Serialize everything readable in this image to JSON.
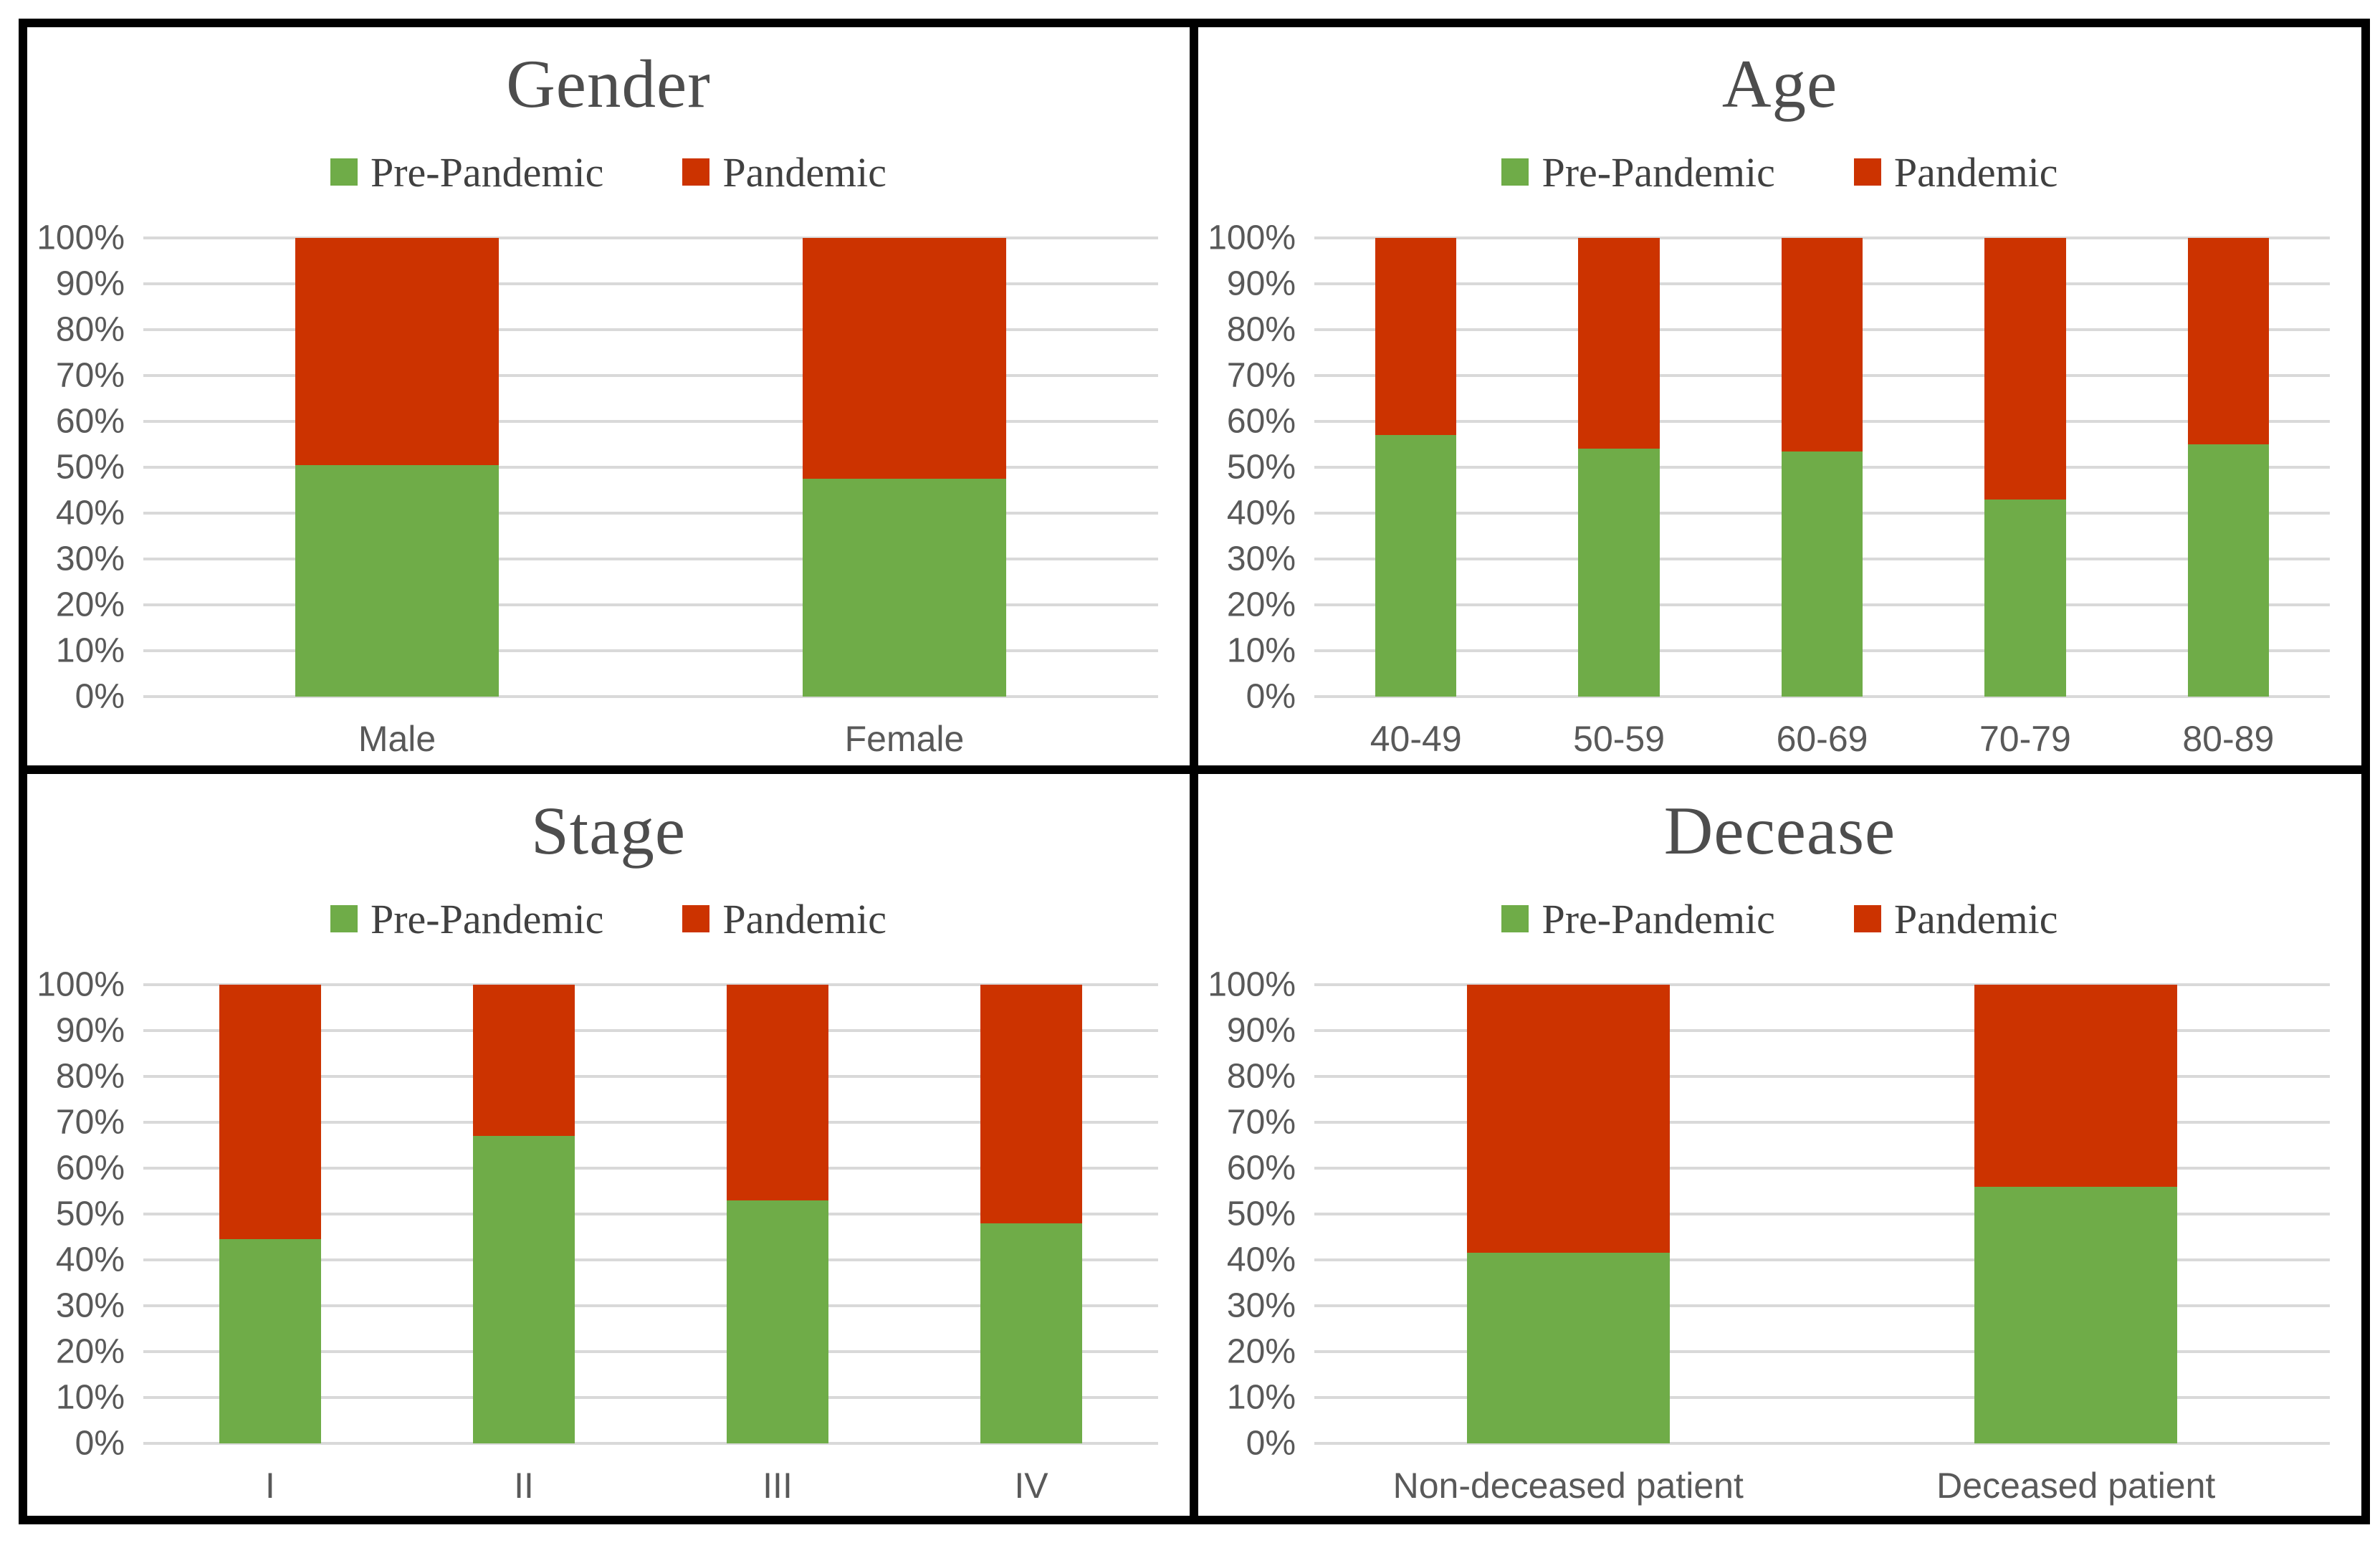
{
  "figure": {
    "background": "#ffffff",
    "frame_color": "#000000"
  },
  "colors": {
    "pre_pandemic": "#6FAC48",
    "pandemic": "#CC3300",
    "gridline": "#D9D9D9",
    "axis_text": "#595959",
    "title_text": "#4D4D4D"
  },
  "y_axis": {
    "ticks": [
      "0%",
      "10%",
      "20%",
      "30%",
      "40%",
      "50%",
      "60%",
      "70%",
      "80%",
      "90%",
      "100%"
    ],
    "min": 0,
    "max": 100
  },
  "chart_data": [
    {
      "type": "bar",
      "stacked": true,
      "percent": true,
      "grid": true,
      "legend_position": "top",
      "title": "Gender",
      "xlabel": "",
      "ylabel": "",
      "ylim": [
        0,
        100
      ],
      "categories": [
        "Male",
        "Female"
      ],
      "series": [
        {
          "name": "Pre-Pandemic",
          "values": [
            50.5,
            47.5
          ]
        },
        {
          "name": "Pandemic",
          "values": [
            49.5,
            52.5
          ]
        }
      ]
    },
    {
      "type": "bar",
      "stacked": true,
      "percent": true,
      "grid": true,
      "legend_position": "top",
      "title": "Age",
      "xlabel": "",
      "ylabel": "",
      "ylim": [
        0,
        100
      ],
      "categories": [
        "40-49",
        "50-59",
        "60-69",
        "70-79",
        "80-89"
      ],
      "series": [
        {
          "name": "Pre-Pandemic",
          "values": [
            57,
            54,
            53.5,
            43,
            55
          ]
        },
        {
          "name": "Pandemic",
          "values": [
            43,
            46,
            46.5,
            57,
            45
          ]
        }
      ]
    },
    {
      "type": "bar",
      "stacked": true,
      "percent": true,
      "grid": true,
      "legend_position": "top",
      "title": "Stage",
      "xlabel": "",
      "ylabel": "",
      "ylim": [
        0,
        100
      ],
      "categories": [
        "I",
        "II",
        "III",
        "IV"
      ],
      "series": [
        {
          "name": "Pre-Pandemic",
          "values": [
            44.5,
            67,
            53,
            48
          ]
        },
        {
          "name": "Pandemic",
          "values": [
            55.5,
            33,
            47,
            52
          ]
        }
      ]
    },
    {
      "type": "bar",
      "stacked": true,
      "percent": true,
      "grid": true,
      "legend_position": "top",
      "title": "Decease",
      "xlabel": "",
      "ylabel": "",
      "ylim": [
        0,
        100
      ],
      "categories": [
        "Non-deceased patient",
        "Deceased patient"
      ],
      "series": [
        {
          "name": "Pre-Pandemic",
          "values": [
            41.5,
            56
          ]
        },
        {
          "name": "Pandemic",
          "values": [
            58.5,
            44
          ]
        }
      ]
    }
  ]
}
